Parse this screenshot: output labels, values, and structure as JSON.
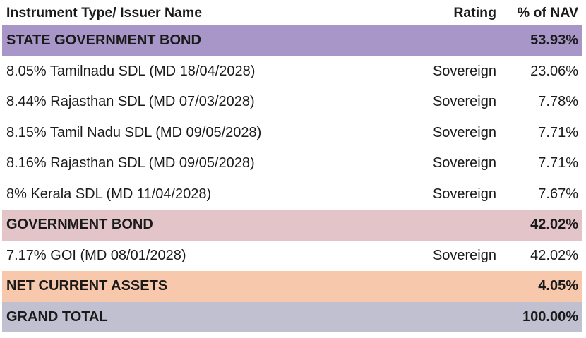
{
  "header": {
    "name": "Instrument Type/ Issuer Name",
    "rating": "Rating",
    "nav": "% of NAV"
  },
  "sections": {
    "state": {
      "label": "STATE GOVERNMENT BOND",
      "nav": "53.93%",
      "color": "#a996c8",
      "rows": [
        {
          "name": "8.05% Tamilnadu SDL (MD 18/04/2028)",
          "rating": "Sovereign",
          "nav": "23.06%"
        },
        {
          "name": "8.44% Rajasthan SDL (MD 07/03/2028)",
          "rating": "Sovereign",
          "nav": "7.78%"
        },
        {
          "name": "8.15% Tamil Nadu SDL (MD 09/05/2028)",
          "rating": "Sovereign",
          "nav": "7.71%"
        },
        {
          "name": "8.16% Rajasthan SDL (MD 09/05/2028)",
          "rating": "Sovereign",
          "nav": "7.71%"
        },
        {
          "name": "8% Kerala SDL (MD 11/04/2028)",
          "rating": "Sovereign",
          "nav": "7.67%"
        }
      ]
    },
    "government": {
      "label": "GOVERNMENT BOND",
      "nav": "42.02%",
      "color": "#e2c4c9",
      "rows": [
        {
          "name": "7.17% GOI (MD 08/01/2028)",
          "rating": "Sovereign",
          "nav": "42.02%"
        }
      ]
    },
    "nca": {
      "label": "NET CURRENT ASSETS",
      "nav": "4.05%",
      "color": "#f8c8ad"
    },
    "total": {
      "label": "GRAND TOTAL",
      "nav": "100.00%",
      "color": "#c0c0d0"
    }
  }
}
